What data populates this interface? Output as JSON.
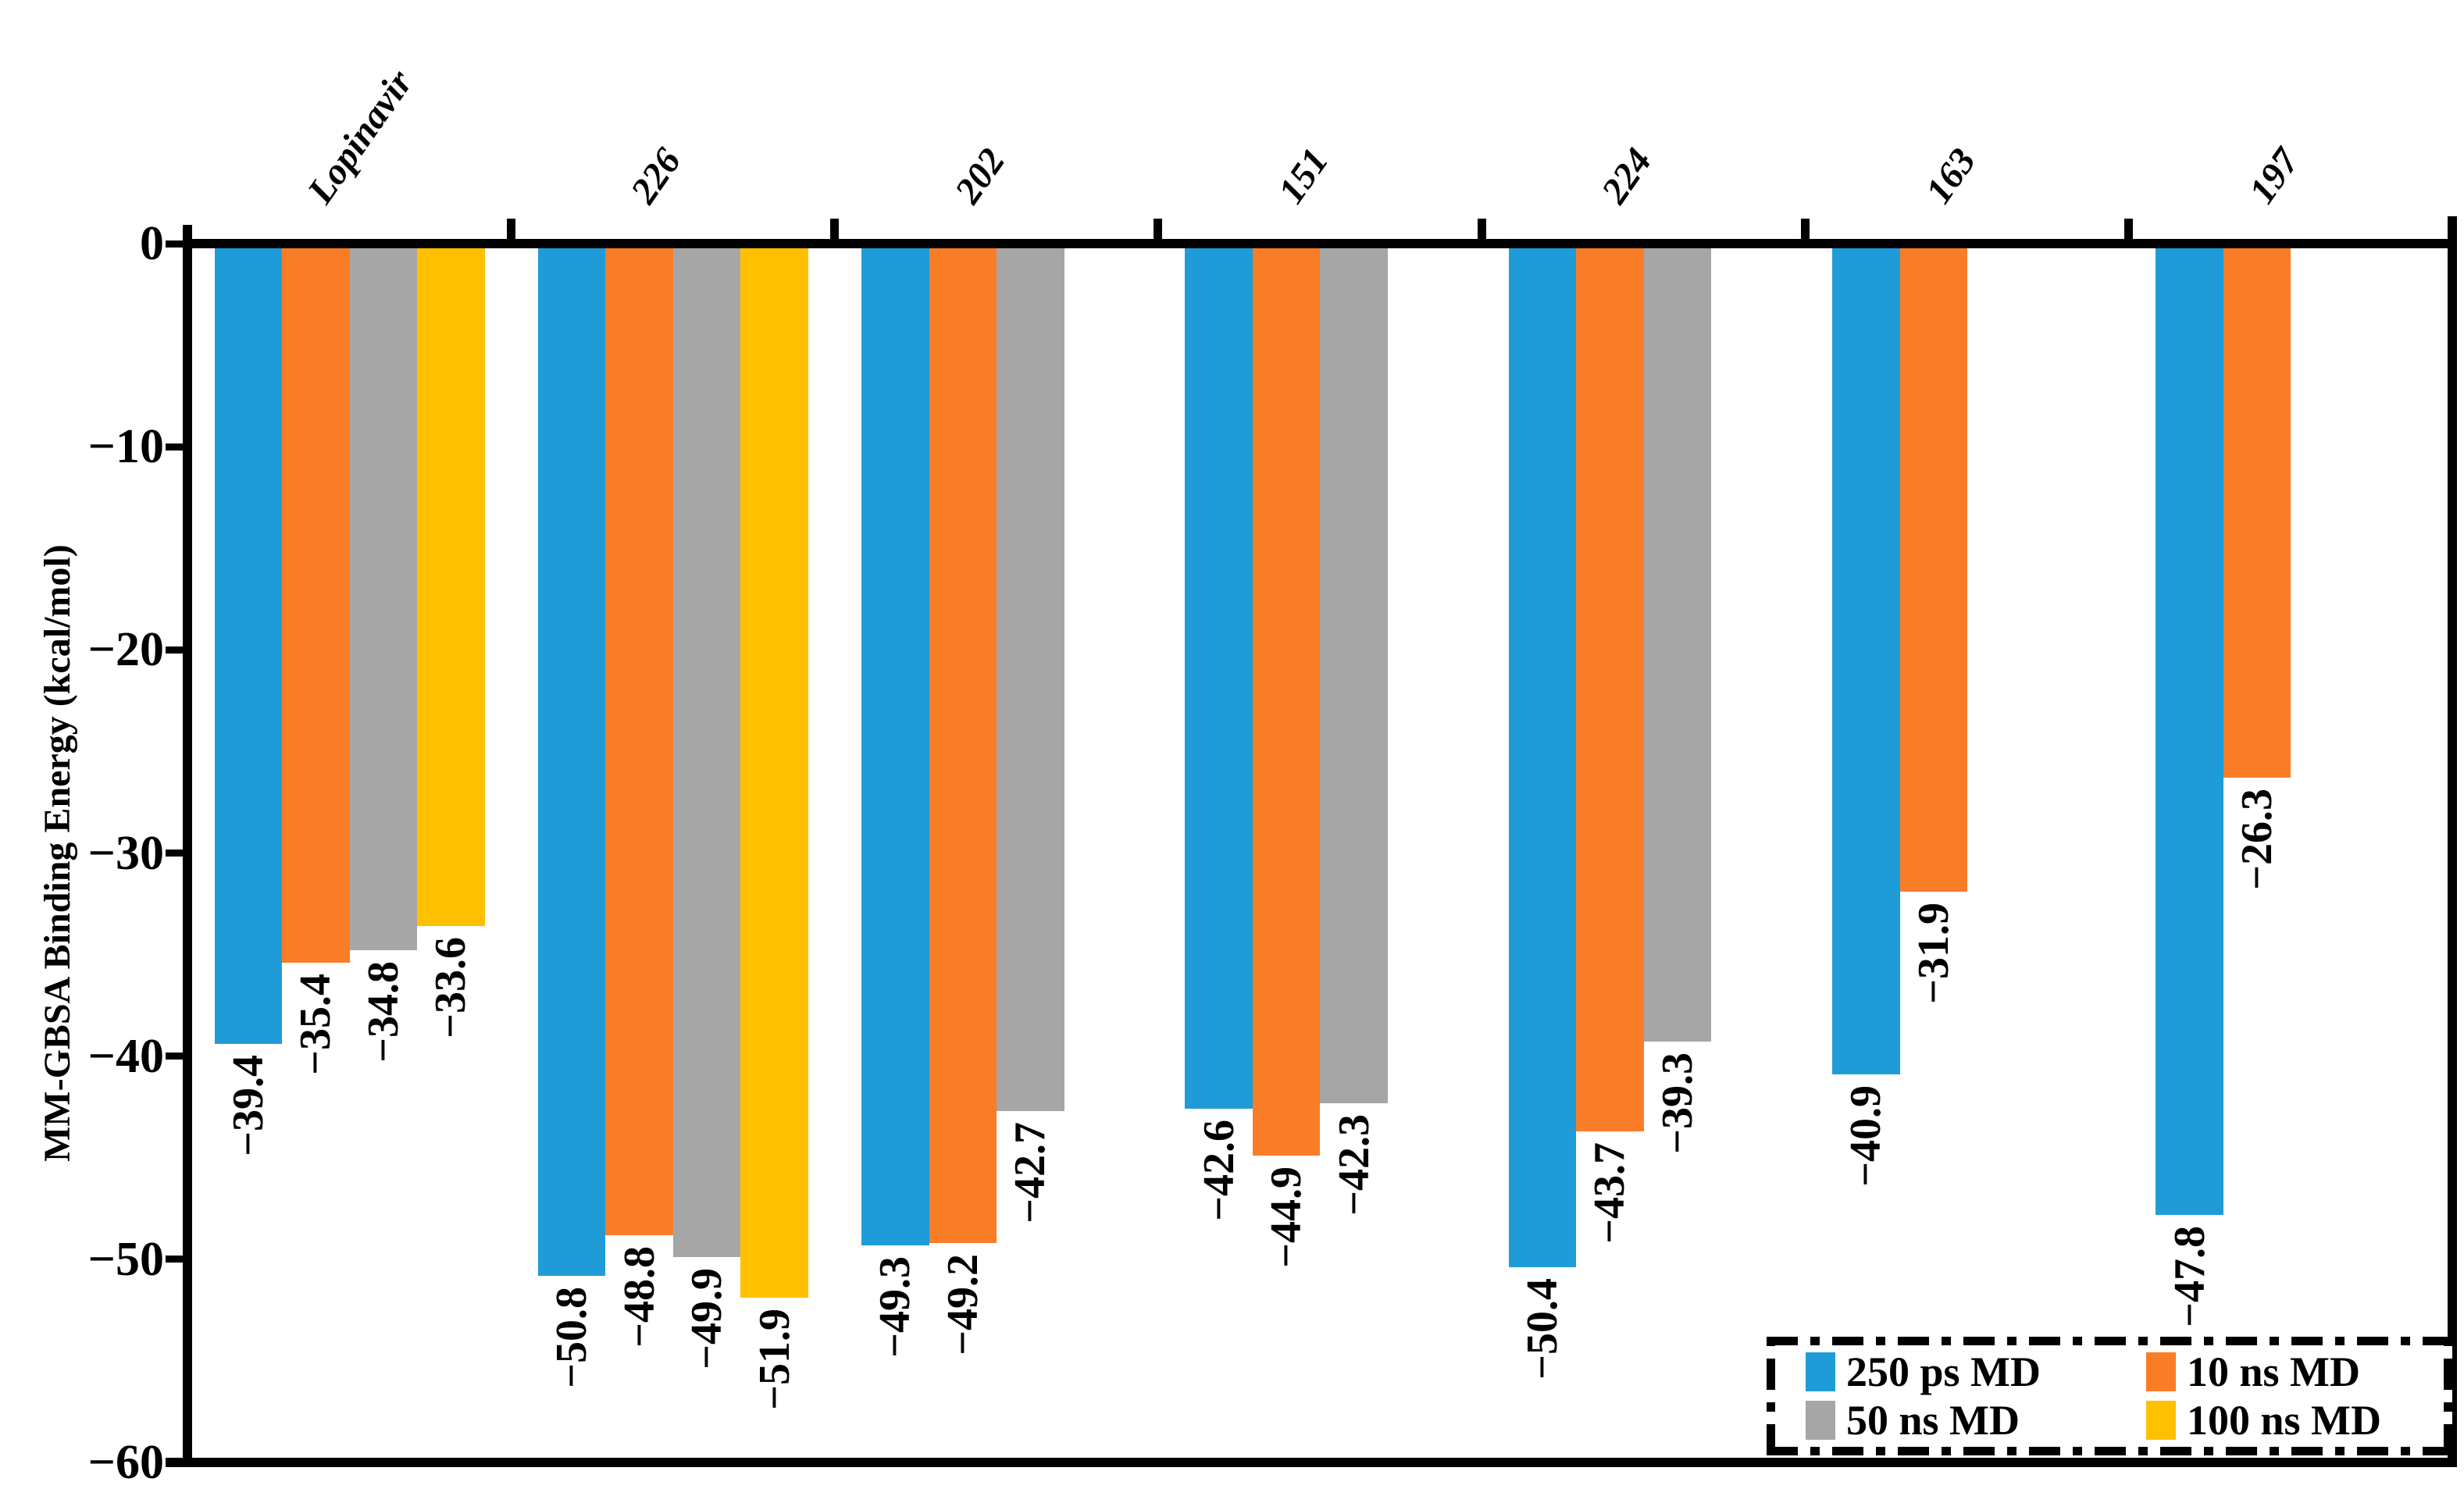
{
  "chart_data": {
    "type": "bar",
    "title": "",
    "ylabel": "MM-GBSA Binding Energy (kcal/mol)",
    "xlabel": "",
    "ylim": [
      0,
      -60
    ],
    "yticks": [
      0,
      -10,
      -20,
      -30,
      -40,
      -50,
      -60
    ],
    "grid": false,
    "legend_position": "bottom-right",
    "bar_value_labels": true,
    "categories": [
      "Lopinavir",
      "226",
      "202",
      "151",
      "224",
      "163",
      "197"
    ],
    "series": [
      {
        "name": "250 ps MD",
        "color": "#1F9CD8",
        "values": [
          -39.4,
          -50.8,
          -49.3,
          -42.6,
          -50.4,
          -40.9,
          -47.8
        ]
      },
      {
        "name": "10 ns MD",
        "color": "#F97D27",
        "values": [
          -35.4,
          -48.8,
          -49.2,
          -44.9,
          -43.7,
          -31.9,
          -26.3
        ]
      },
      {
        "name": "50 ns MD",
        "color": "#A6A6A6",
        "values": [
          -34.8,
          -49.9,
          -42.7,
          -42.3,
          -39.3,
          null,
          null
        ]
      },
      {
        "name": "100 ns MD",
        "color": "#FFC000",
        "values": [
          -33.6,
          -51.9,
          null,
          null,
          null,
          null,
          null
        ]
      }
    ]
  }
}
